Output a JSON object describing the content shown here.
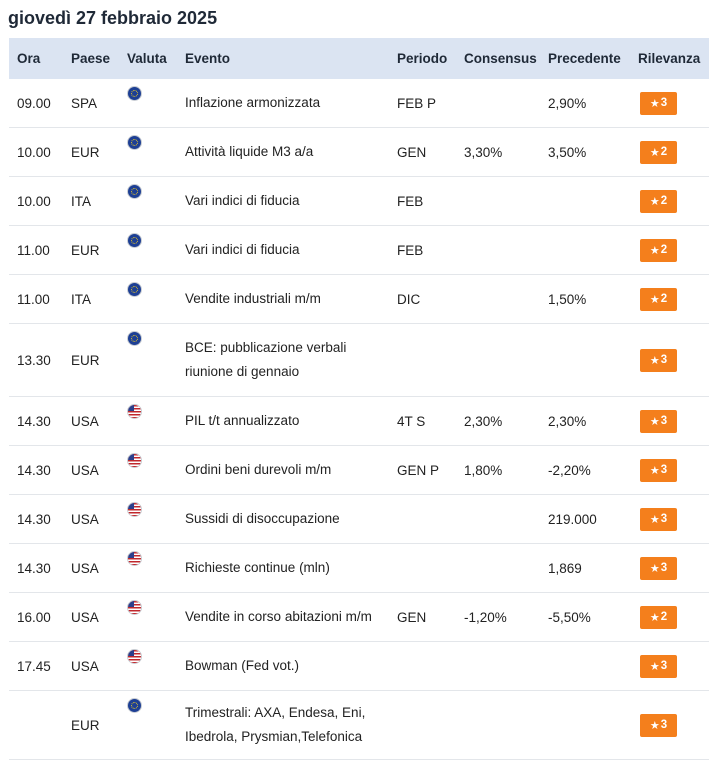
{
  "title": "giovedì 27 febbraio 2025",
  "columns": {
    "ora": "Ora",
    "paese": "Paese",
    "valuta": "Valuta",
    "evento": "Evento",
    "periodo": "Periodo",
    "consensus": "Consensus",
    "precedente": "Precedente",
    "rilevanza": "Rilevanza"
  },
  "colors": {
    "header_bg": "#dbe4f2",
    "badge": "#f47f1c"
  },
  "rows": [
    {
      "ora": "09.00",
      "paese": "SPA",
      "flag": "eu-flag-icon",
      "evento": "Inflazione armonizzata",
      "periodo": "FEB P",
      "consensus": "",
      "precedente": "2,90%",
      "rilevanza": "3"
    },
    {
      "ora": "10.00",
      "paese": "EUR",
      "flag": "eu-flag-icon",
      "evento": "Attività liquide M3 a/a",
      "periodo": "GEN",
      "consensus": "3,30%",
      "precedente": "3,50%",
      "rilevanza": "2"
    },
    {
      "ora": "10.00",
      "paese": "ITA",
      "flag": "eu-flag-icon",
      "evento": "Vari indici di fiducia",
      "periodo": "FEB",
      "consensus": "",
      "precedente": "",
      "rilevanza": "2"
    },
    {
      "ora": "11.00",
      "paese": "EUR",
      "flag": "eu-flag-icon",
      "evento": "Vari indici di fiducia",
      "periodo": "FEB",
      "consensus": "",
      "precedente": "",
      "rilevanza": "2"
    },
    {
      "ora": "11.00",
      "paese": "ITA",
      "flag": "eu-flag-icon",
      "evento": "Vendite industriali m/m",
      "periodo": "DIC",
      "consensus": "",
      "precedente": "1,50%",
      "rilevanza": "2"
    },
    {
      "ora": "13.30",
      "paese": "EUR",
      "flag": "eu-flag-icon",
      "evento": "BCE: pubblicazione verbali",
      "evento2": "riunione di gennaio",
      "periodo": "",
      "consensus": "",
      "precedente": "",
      "rilevanza": "3"
    },
    {
      "ora": "14.30",
      "paese": "USA",
      "flag": "us-flag-icon",
      "evento": "PIL t/t annualizzato",
      "periodo": "4T S",
      "consensus": "2,30%",
      "precedente": "2,30%",
      "rilevanza": "3"
    },
    {
      "ora": "14.30",
      "paese": "USA",
      "flag": "us-flag-icon",
      "evento": "Ordini beni durevoli m/m",
      "periodo": "GEN P",
      "consensus": "1,80%",
      "precedente": "-2,20%",
      "rilevanza": "3"
    },
    {
      "ora": "14.30",
      "paese": "USA",
      "flag": "us-flag-icon",
      "evento": "Sussidi di disoccupazione",
      "periodo": "",
      "consensus": "",
      "precedente": "219.000",
      "rilevanza": "3"
    },
    {
      "ora": "14.30",
      "paese": "USA",
      "flag": "us-flag-icon",
      "evento": "Richieste continue (mln)",
      "periodo": "",
      "consensus": "",
      "precedente": "1,869",
      "rilevanza": "3"
    },
    {
      "ora": "16.00",
      "paese": "USA",
      "flag": "us-flag-icon",
      "evento": "Vendite in corso abitazioni m/m",
      "periodo": "GEN",
      "consensus": "-1,20%",
      "precedente": "-5,50%",
      "rilevanza": "2"
    },
    {
      "ora": "17.45",
      "paese": "USA",
      "flag": "us-flag-icon",
      "evento": "Bowman (Fed vot.)",
      "periodo": "",
      "consensus": "",
      "precedente": "",
      "rilevanza": "3"
    },
    {
      "ora": "",
      "paese": "EUR",
      "flag": "eu-flag-icon",
      "evento": "Trimestrali: AXA, Endesa, Eni,",
      "evento2": "Ibedrola, Prysmian,Telefonica",
      "periodo": "",
      "consensus": "",
      "precedente": "",
      "rilevanza": "3"
    }
  ]
}
